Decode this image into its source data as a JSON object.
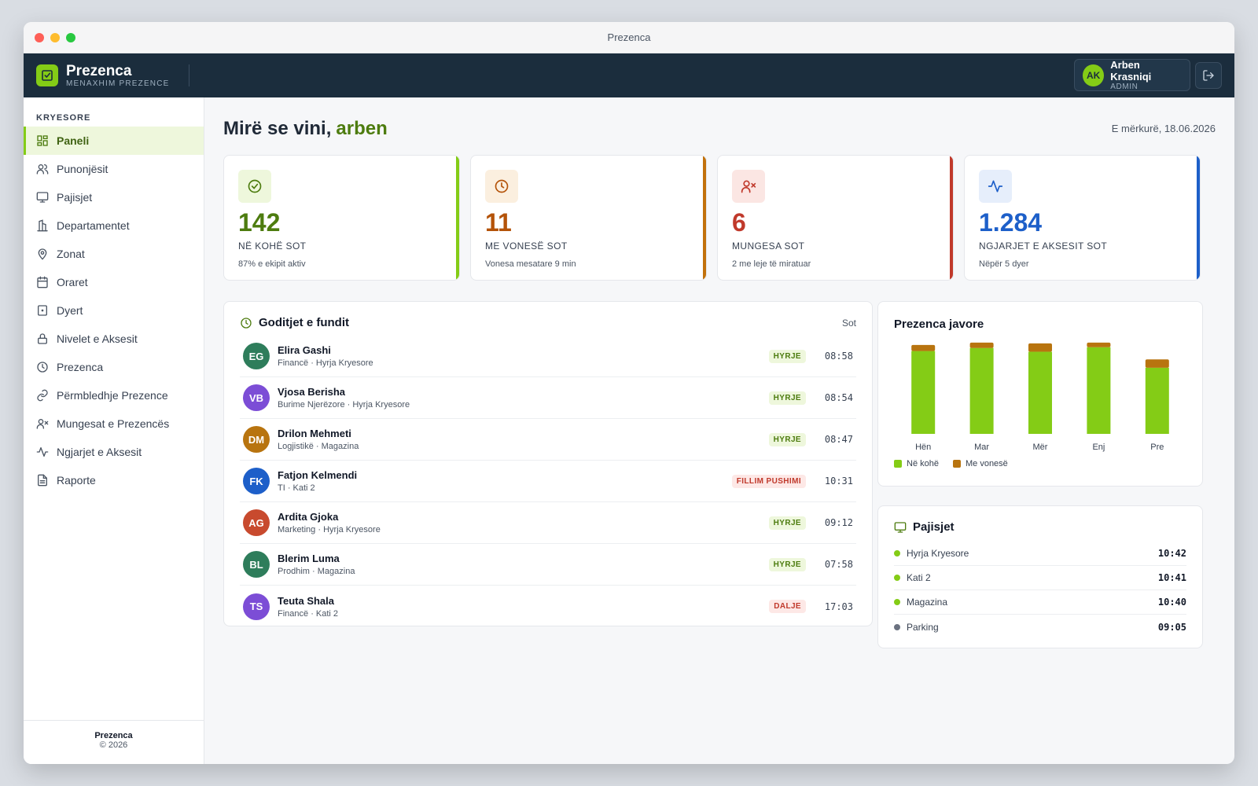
{
  "window": {
    "title": "Prezenca"
  },
  "brand": {
    "name": "Prezenca",
    "subtitle": "MENAXHIM PREZENCE",
    "logo_icon": "check-square-icon",
    "color": "#84cc16"
  },
  "user": {
    "initials": "AK",
    "name": "Arben Krasniqi",
    "role": "ADMIN",
    "logout_icon": "logout-icon"
  },
  "sidebar": {
    "section": "KRYESORE",
    "items": [
      {
        "label": "Paneli",
        "icon": "dashboard-icon",
        "active": true
      },
      {
        "label": "Punonjësit",
        "icon": "users-icon"
      },
      {
        "label": "Pajisjet",
        "icon": "monitor-icon"
      },
      {
        "label": "Departamentet",
        "icon": "building-icon"
      },
      {
        "label": "Zonat",
        "icon": "map-pin-icon"
      },
      {
        "label": "Oraret",
        "icon": "calendar-icon"
      },
      {
        "label": "Dyert",
        "icon": "door-icon"
      },
      {
        "label": "Nivelet e Aksesit",
        "icon": "lock-icon"
      },
      {
        "label": "Prezenca",
        "icon": "clock-icon"
      },
      {
        "label": "Përmbledhje Prezence",
        "icon": "link-icon"
      },
      {
        "label": "Mungesat e Prezencës",
        "icon": "user-x-icon"
      },
      {
        "label": "Ngjarjet e Aksesit",
        "icon": "activity-icon"
      },
      {
        "label": "Raporte",
        "icon": "file-icon"
      }
    ],
    "footer": {
      "name": "Prezenca",
      "copyright": "© 2026"
    }
  },
  "main": {
    "greeting": "Mirë se vini,",
    "username": "arben",
    "date": "E mërkurë, 18.06.2026"
  },
  "stats": [
    {
      "value": "142",
      "label": "NË KOHË SOT",
      "sub": "87% e ekipit aktiv",
      "color": "#4d7c0f",
      "bar": "#84cc16",
      "bg": "#eef7dc",
      "icon": "check-circle-icon"
    },
    {
      "value": "11",
      "label": "ME VONESË SOT",
      "sub": "Vonesa mesatare 9 min",
      "color": "#b45309",
      "bar": "#c2710c",
      "bg": "#fbefdf",
      "icon": "clock-icon"
    },
    {
      "value": "6",
      "label": "MUNGESA SOT",
      "sub": "2 me leje të miratuar",
      "color": "#c0392b",
      "bar": "#c0392b",
      "bg": "#fbe6e3",
      "icon": "user-x-icon"
    },
    {
      "value": "1.284",
      "label": "NGJARJET E AKSESIT SOT",
      "sub": "Nëpër 5 dyer",
      "color": "#1d5fc9",
      "bar": "#1d5fc9",
      "bg": "#e6eefb",
      "icon": "activity-icon"
    }
  ],
  "recent": {
    "title": "Goditjet e fundit",
    "filter": "Sot",
    "rows": [
      {
        "initials": "EG",
        "name": "Elira Gashi",
        "meta": "Financë · Hyrja Kryesore",
        "badge": "HYRJE",
        "type": "in",
        "time": "08:58",
        "color": "#2e7d5b"
      },
      {
        "initials": "VB",
        "name": "Vjosa Berisha",
        "meta": "Burime Njerëzore · Hyrja Kryesore",
        "badge": "HYRJE",
        "type": "in",
        "time": "08:54",
        "color": "#7c4dd6"
      },
      {
        "initials": "DM",
        "name": "Drilon Mehmeti",
        "meta": "Logjistikë · Magazina",
        "badge": "HYRJE",
        "type": "in",
        "time": "08:47",
        "color": "#b8740f"
      },
      {
        "initials": "FK",
        "name": "Fatjon Kelmendi",
        "meta": "TI · Kati 2",
        "badge": "FILLIM PUSHIMI",
        "type": "out",
        "time": "10:31",
        "color": "#1d5fc9"
      },
      {
        "initials": "AG",
        "name": "Ardita Gjoka",
        "meta": "Marketing · Hyrja Kryesore",
        "badge": "HYRJE",
        "type": "in",
        "time": "09:12",
        "color": "#c84a2e"
      },
      {
        "initials": "BL",
        "name": "Blerim Luma",
        "meta": "Prodhim · Magazina",
        "badge": "HYRJE",
        "type": "in",
        "time": "07:58",
        "color": "#2e7d5b"
      },
      {
        "initials": "TS",
        "name": "Teuta Shala",
        "meta": "Financë · Kati 2",
        "badge": "DALJE",
        "type": "out",
        "time": "17:03",
        "color": "#7c4dd6"
      }
    ]
  },
  "chart_data": {
    "type": "bar",
    "title": "Prezenca javore",
    "stacked": true,
    "categories": [
      "Hën",
      "Mar",
      "Mër",
      "Enj",
      "Pre"
    ],
    "series": [
      {
        "name": "Në kohë",
        "values": [
          109,
          113,
          108,
          114,
          87
        ],
        "color": "#84cc16"
      },
      {
        "name": "Me vonesë",
        "values": [
          8,
          7,
          11,
          6,
          11
        ],
        "color": "#b8740f"
      }
    ],
    "ylim": [
      0,
      122
    ]
  },
  "devices": {
    "title": "Pajisjet",
    "icon": "monitor-icon",
    "items": [
      {
        "name": "Hyrja Kryesore",
        "time": "10:42",
        "status": "online"
      },
      {
        "name": "Kati 2",
        "time": "10:41",
        "status": "online"
      },
      {
        "name": "Magazina",
        "time": "10:40",
        "status": "online"
      },
      {
        "name": "Parking",
        "time": "09:05",
        "status": "offline"
      }
    ]
  }
}
